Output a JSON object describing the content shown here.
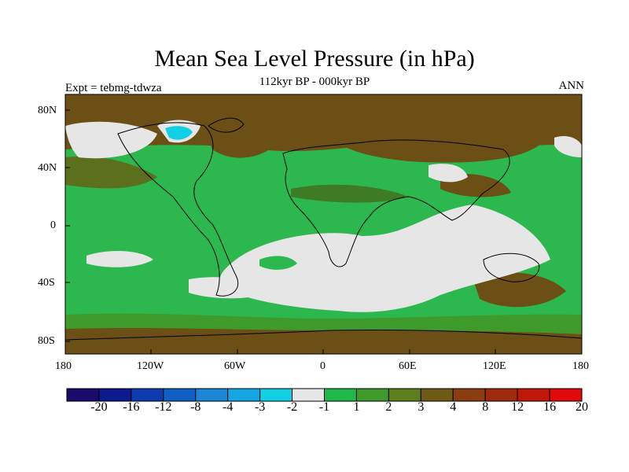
{
  "title": "Mean Sea Level Pressure (in hPa)",
  "subtitle": "112kyr BP - 000kyr BP",
  "left_label": "Expt = tebmg-tdwza",
  "right_label": "ANN",
  "y_ticks": [
    "80N",
    "40N",
    "0",
    "40S",
    "80S"
  ],
  "x_ticks": [
    "180",
    "120W",
    "60W",
    "0",
    "60E",
    "120E",
    "180"
  ],
  "colorbar": {
    "boundaries": [
      "-20",
      "-16",
      "-12",
      "-8",
      "-4",
      "-3",
      "-2",
      "-1",
      "1",
      "2",
      "3",
      "4",
      "8",
      "12",
      "16",
      "20"
    ],
    "colors": [
      "#1a0a6b",
      "#0b1a8c",
      "#0e3cb0",
      "#0f5fc4",
      "#1b86d4",
      "#15a5e0",
      "#13cfe6",
      "#e6e6e6",
      "#20b84a",
      "#3f9a2c",
      "#5c7f1d",
      "#6f5a14",
      "#8a3e10",
      "#a02a0c",
      "#c01808",
      "#e00a0a"
    ]
  },
  "colors": {
    "land_outline": "#000000",
    "ocean_background": "#2db84f",
    "neutral": "#e6e6e6",
    "positive_dark": "#6b4f14",
    "positive_mid": "#4f8a2a",
    "negative": "#15a5e0"
  }
}
